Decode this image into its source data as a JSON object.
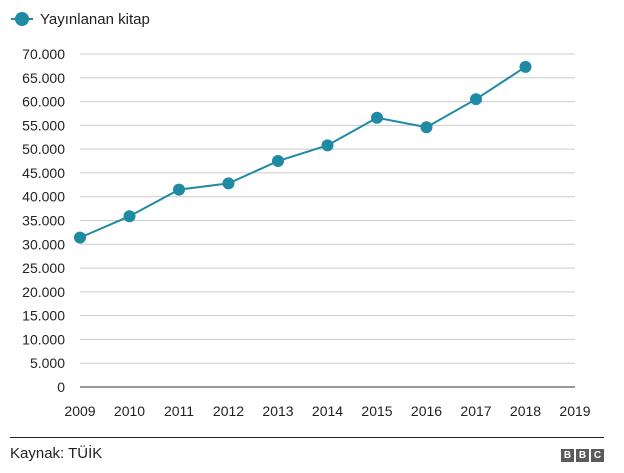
{
  "chart_data": {
    "type": "line",
    "title": "",
    "xlabel": "",
    "ylabel": "",
    "x": [
      2009,
      2010,
      2011,
      2012,
      2013,
      2014,
      2015,
      2016,
      2017,
      2018
    ],
    "series": [
      {
        "name": "Yayınlanan kitap",
        "values": [
          31400,
          35900,
          41500,
          42800,
          47500,
          50800,
          56600,
          54600,
          60500,
          67300
        ]
      }
    ],
    "xlim": [
      2009,
      2019
    ],
    "ylim": [
      0,
      70000
    ],
    "x_ticks": [
      "2009",
      "2010",
      "2011",
      "2012",
      "2013",
      "2014",
      "2015",
      "2016",
      "2017",
      "2018",
      "2019"
    ],
    "y_ticks": [
      "0",
      "5.000",
      "10.000",
      "15.000",
      "20.000",
      "25.000",
      "30.000",
      "35.000",
      "40.000",
      "45.000",
      "50.000",
      "55.000",
      "60.000",
      "65.000",
      "70.000"
    ],
    "grid": "horizontal",
    "legend_position": "top-left",
    "colors": {
      "series": "#1f8aa3",
      "grid": "#cccccc",
      "axis": "#333333"
    }
  },
  "footer": {
    "source": "Kaynak: TÜİK",
    "logo_letters": [
      "B",
      "B",
      "C"
    ]
  }
}
